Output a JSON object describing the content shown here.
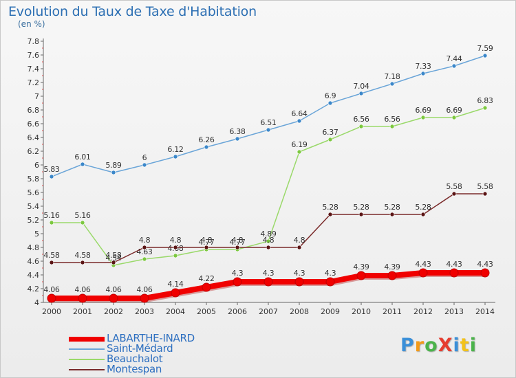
{
  "header": {
    "title": "Evolution du Taux de Taxe d'Habitation",
    "subtitle": "(en %)"
  },
  "logo": {
    "text": "ProXiti",
    "letters": [
      {
        "ch": "P",
        "color": "#3a8fd8"
      },
      {
        "ch": "r",
        "color": "#f29a1a"
      },
      {
        "ch": "o",
        "color": "#4bb34b"
      },
      {
        "ch": "X",
        "color": "#e63c2f"
      },
      {
        "ch": "i",
        "color": "#3a8fd8"
      },
      {
        "ch": "t",
        "color": "#f2c21a"
      },
      {
        "ch": "i",
        "color": "#4bb34b"
      }
    ]
  },
  "chart_data": {
    "type": "line",
    "x": [
      "2000",
      "2001",
      "2002",
      "2003",
      "2004",
      "2005",
      "2006",
      "2007",
      "2008",
      "2009",
      "2010",
      "2011",
      "2012",
      "2013",
      "2014"
    ],
    "ylim": [
      4,
      7.8
    ],
    "yticks": [
      "4",
      "4.2",
      "4.4",
      "4.6",
      "4.8",
      "5",
      "5.2",
      "5.4",
      "5.6",
      "5.8",
      "6",
      "6.2",
      "6.4",
      "6.6",
      "6.8",
      "7",
      "7.2",
      "7.4",
      "7.6",
      "7.8"
    ],
    "grid": false,
    "legend_position": "bottom-left",
    "series": [
      {
        "name": "Saint-Médard",
        "color": "#6aa5d8",
        "marker": "#3b87c9",
        "values": [
          5.83,
          6.01,
          5.89,
          6,
          6.12,
          6.26,
          6.38,
          6.51,
          6.64,
          6.9,
          7.04,
          7.18,
          7.33,
          7.44,
          7.59
        ],
        "labels": [
          "5.83",
          "6.01",
          "5.89",
          "6",
          "6.12",
          "6.26",
          "6.38",
          "6.51",
          "6.64",
          "6.9",
          "7.04",
          "7.18",
          "7.33",
          "7.44",
          "7.59"
        ]
      },
      {
        "name": "Beauchalot",
        "color": "#9ad96a",
        "marker": "#7cc83f",
        "values": [
          5.16,
          5.16,
          4.54,
          4.63,
          4.68,
          4.77,
          4.77,
          4.89,
          6.19,
          6.37,
          6.56,
          6.56,
          6.69,
          6.69,
          6.83
        ],
        "labels": [
          "5.16",
          "5.16",
          "4.54",
          "4.63",
          "4.68",
          "4.77",
          "4.77",
          "4.89",
          "6.19",
          "6.37",
          "6.56",
          "6.56",
          "6.69",
          "6.69",
          "6.83"
        ]
      },
      {
        "name": "Montespan",
        "color": "#7a2a2a",
        "marker": "#5a1414",
        "values": [
          4.58,
          4.58,
          4.58,
          4.8,
          4.8,
          4.8,
          4.8,
          4.8,
          4.8,
          5.28,
          5.28,
          5.28,
          5.28,
          5.58,
          5.58
        ],
        "labels": [
          "4.58",
          "4.58",
          "4.58",
          "4.8",
          "4.8",
          "4.8",
          "4.8",
          "4.8",
          "4.8",
          "5.28",
          "5.28",
          "5.28",
          "5.28",
          "5.58",
          "5.58"
        ]
      },
      {
        "name": "LABARTHE-INARD",
        "color": "#f00000",
        "marker": "#f00000",
        "values": [
          4.06,
          4.06,
          4.06,
          4.06,
          4.14,
          4.22,
          4.3,
          4.3,
          4.3,
          4.3,
          4.39,
          4.39,
          4.43,
          4.43,
          4.43
        ],
        "labels": [
          "4.06",
          "4.06",
          "4.06",
          "4.06",
          "4.14",
          "4.22",
          "4.3",
          "4.3",
          "4.3",
          "4.3",
          "4.39",
          "4.39",
          "4.43",
          "4.43",
          "4.43"
        ]
      }
    ],
    "legend": [
      {
        "name": "LABARTHE-INARD",
        "color": "#f00000"
      },
      {
        "name": "Saint-Médard",
        "color": "#6aa5d8"
      },
      {
        "name": "Beauchalot",
        "color": "#9ad96a"
      },
      {
        "name": "Montespan",
        "color": "#7a2a2a"
      }
    ]
  }
}
